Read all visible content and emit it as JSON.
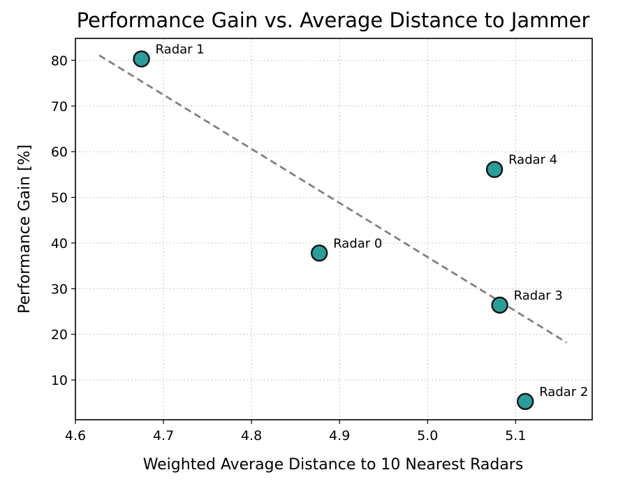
{
  "chart_data": {
    "type": "scatter",
    "title": "Performance Gain vs. Average Distance to Jammer",
    "xlabel": "Weighted Average Distance to 10 Nearest Radars",
    "ylabel": "Performance Gain [%]",
    "xlim": [
      4.6,
      5.187
    ],
    "ylim": [
      1.3,
      84.8
    ],
    "xticks": [
      4.6,
      4.7,
      4.8,
      4.9,
      5.0,
      5.1
    ],
    "yticks": [
      10,
      20,
      30,
      40,
      50,
      60,
      70,
      80
    ],
    "grid": true,
    "marker_color": "#2a9d9a",
    "points": [
      {
        "label": "Radar 1",
        "x": 4.675,
        "y": 80.3
      },
      {
        "label": "Radar 0",
        "x": 4.877,
        "y": 37.8
      },
      {
        "label": "Radar 4",
        "x": 5.076,
        "y": 56.1
      },
      {
        "label": "Radar 3",
        "x": 5.082,
        "y": 26.4
      },
      {
        "label": "Radar 2",
        "x": 5.111,
        "y": 5.3
      }
    ],
    "fit_line": {
      "x": [
        4.627,
        5.158
      ],
      "y": [
        81.1,
        18.2
      ],
      "color": "#808080",
      "style": "dashed"
    }
  }
}
